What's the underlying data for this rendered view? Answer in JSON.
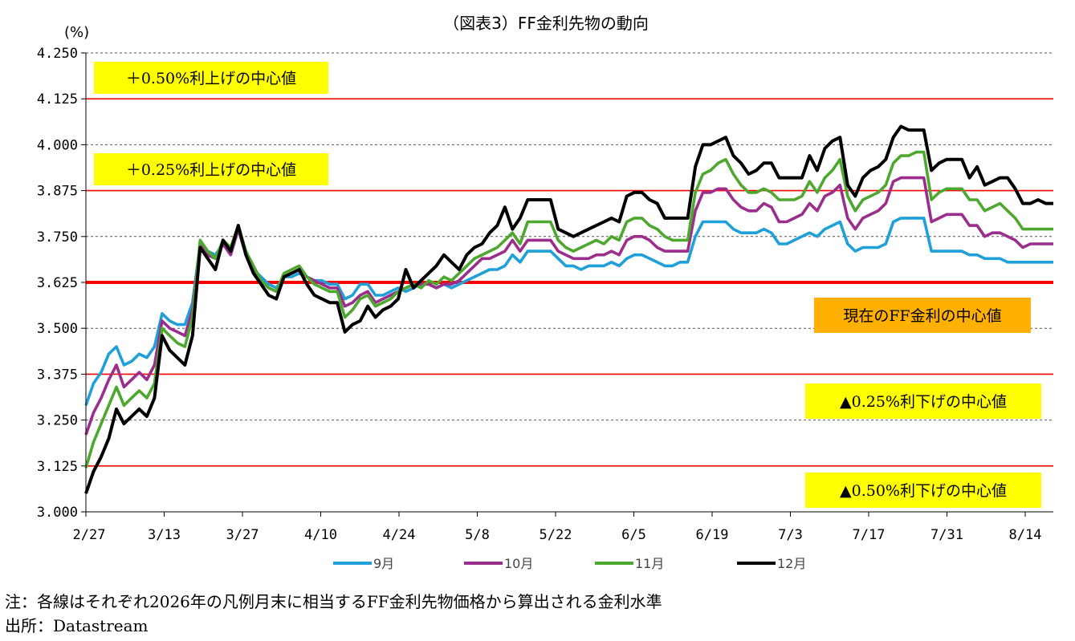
{
  "chart_data": {
    "type": "line",
    "title": "（図表3）FF金利先物の動向",
    "ylabel": "(%)",
    "ylim": [
      3.0,
      4.25
    ],
    "y_ticks": [
      "4.250",
      "4.125",
      "4.000",
      "3.875",
      "3.750",
      "3.625",
      "3.500",
      "3.375",
      "3.250",
      "3.125",
      "3.000"
    ],
    "x_ticks": [
      "2/27",
      "3/13",
      "3/27",
      "4/10",
      "4/24",
      "5/8",
      "5/22",
      "6/5",
      "6/19",
      "7/3",
      "7/17",
      "7/31",
      "8/14"
    ],
    "grid": "horizontal dashed",
    "legend_position": "bottom",
    "reference_lines": [
      {
        "value": 4.125,
        "color": "#ff0000",
        "bold": false
      },
      {
        "value": 3.875,
        "color": "#ff0000",
        "bold": false
      },
      {
        "value": 3.625,
        "color": "#ff0000",
        "bold": true
      },
      {
        "value": 3.375,
        "color": "#ff0000",
        "bold": false
      },
      {
        "value": 3.125,
        "color": "#ff0000",
        "bold": false
      }
    ],
    "annotations": [
      {
        "text": "＋0.50%利上げの中心値",
        "color": "#ffff00"
      },
      {
        "text": "＋0.25%利上げの中心値",
        "color": "#ffff00"
      },
      {
        "text": "現在のFF金利の中心値",
        "color": "#ffb000"
      },
      {
        "text": "▲0.25%利下げの中心値",
        "color": "#ffff00"
      },
      {
        "text": "▲0.50%利下げの中心値",
        "color": "#ffff00"
      }
    ],
    "series": [
      {
        "name": "9月",
        "color": "#1fa0d8",
        "values": [
          3.29,
          3.35,
          3.38,
          3.43,
          3.45,
          3.4,
          3.41,
          3.43,
          3.42,
          3.45,
          3.54,
          3.52,
          3.51,
          3.51,
          3.57,
          3.73,
          3.71,
          3.7,
          3.73,
          3.7,
          3.77,
          3.7,
          3.66,
          3.64,
          3.62,
          3.61,
          3.64,
          3.64,
          3.65,
          3.64,
          3.63,
          3.63,
          3.62,
          3.62,
          3.58,
          3.59,
          3.62,
          3.62,
          3.59,
          3.59,
          3.6,
          3.61,
          3.6,
          3.61,
          3.62,
          3.62,
          3.61,
          3.62,
          3.61,
          3.62,
          3.63,
          3.64,
          3.65,
          3.66,
          3.66,
          3.67,
          3.7,
          3.68,
          3.71,
          3.71,
          3.71,
          3.71,
          3.69,
          3.67,
          3.67,
          3.66,
          3.67,
          3.67,
          3.67,
          3.68,
          3.67,
          3.69,
          3.7,
          3.7,
          3.69,
          3.68,
          3.67,
          3.67,
          3.68,
          3.68,
          3.75,
          3.79,
          3.79,
          3.79,
          3.79,
          3.77,
          3.76,
          3.76,
          3.76,
          3.77,
          3.76,
          3.73,
          3.73,
          3.74,
          3.75,
          3.76,
          3.75,
          3.77,
          3.78,
          3.79,
          3.73,
          3.71,
          3.72,
          3.72,
          3.72,
          3.73,
          3.79,
          3.8,
          3.8,
          3.8,
          3.8,
          3.71,
          3.71,
          3.71,
          3.71,
          3.71,
          3.7,
          3.7,
          3.69,
          3.69,
          3.69,
          3.68,
          3.68,
          3.68,
          3.68,
          3.68,
          3.68,
          3.68
        ]
      },
      {
        "name": "10月",
        "color": "#9b2e8d",
        "values": [
          3.21,
          3.27,
          3.31,
          3.36,
          3.4,
          3.34,
          3.36,
          3.38,
          3.36,
          3.4,
          3.52,
          3.5,
          3.49,
          3.48,
          3.55,
          3.73,
          3.7,
          3.69,
          3.73,
          3.7,
          3.77,
          3.7,
          3.66,
          3.63,
          3.61,
          3.6,
          3.64,
          3.65,
          3.66,
          3.64,
          3.63,
          3.62,
          3.61,
          3.61,
          3.56,
          3.57,
          3.59,
          3.6,
          3.57,
          3.58,
          3.59,
          3.6,
          3.61,
          3.62,
          3.62,
          3.62,
          3.61,
          3.62,
          3.62,
          3.63,
          3.65,
          3.67,
          3.69,
          3.69,
          3.7,
          3.71,
          3.74,
          3.71,
          3.74,
          3.74,
          3.74,
          3.74,
          3.71,
          3.7,
          3.69,
          3.69,
          3.69,
          3.7,
          3.7,
          3.71,
          3.7,
          3.74,
          3.75,
          3.75,
          3.74,
          3.72,
          3.71,
          3.71,
          3.71,
          3.71,
          3.82,
          3.87,
          3.87,
          3.88,
          3.88,
          3.85,
          3.83,
          3.82,
          3.82,
          3.84,
          3.83,
          3.79,
          3.79,
          3.8,
          3.81,
          3.84,
          3.82,
          3.86,
          3.87,
          3.89,
          3.8,
          3.77,
          3.8,
          3.81,
          3.82,
          3.84,
          3.9,
          3.91,
          3.91,
          3.91,
          3.91,
          3.79,
          3.8,
          3.81,
          3.81,
          3.81,
          3.78,
          3.78,
          3.75,
          3.76,
          3.76,
          3.75,
          3.74,
          3.72,
          3.73,
          3.73,
          3.73,
          3.73
        ]
      },
      {
        "name": "11月",
        "color": "#4ea72e",
        "values": [
          3.12,
          3.19,
          3.24,
          3.29,
          3.34,
          3.29,
          3.31,
          3.33,
          3.31,
          3.35,
          3.5,
          3.48,
          3.46,
          3.45,
          3.53,
          3.74,
          3.71,
          3.69,
          3.74,
          3.72,
          3.78,
          3.71,
          3.67,
          3.63,
          3.61,
          3.6,
          3.65,
          3.66,
          3.67,
          3.64,
          3.62,
          3.61,
          3.6,
          3.6,
          3.53,
          3.55,
          3.58,
          3.59,
          3.56,
          3.57,
          3.58,
          3.6,
          3.61,
          3.62,
          3.61,
          3.63,
          3.62,
          3.64,
          3.63,
          3.65,
          3.67,
          3.69,
          3.7,
          3.71,
          3.72,
          3.74,
          3.76,
          3.73,
          3.79,
          3.79,
          3.79,
          3.79,
          3.74,
          3.72,
          3.71,
          3.72,
          3.73,
          3.74,
          3.73,
          3.75,
          3.74,
          3.79,
          3.8,
          3.8,
          3.78,
          3.77,
          3.75,
          3.74,
          3.74,
          3.74,
          3.87,
          3.92,
          3.93,
          3.95,
          3.96,
          3.92,
          3.89,
          3.87,
          3.87,
          3.88,
          3.87,
          3.85,
          3.85,
          3.85,
          3.86,
          3.9,
          3.87,
          3.91,
          3.93,
          3.96,
          3.86,
          3.82,
          3.85,
          3.86,
          3.87,
          3.89,
          3.95,
          3.97,
          3.97,
          3.98,
          3.98,
          3.85,
          3.87,
          3.88,
          3.88,
          3.88,
          3.85,
          3.85,
          3.82,
          3.83,
          3.84,
          3.82,
          3.8,
          3.77,
          3.77,
          3.77,
          3.77,
          3.77
        ]
      },
      {
        "name": "12月",
        "color": "#000000",
        "values": [
          3.05,
          3.11,
          3.15,
          3.2,
          3.28,
          3.24,
          3.26,
          3.28,
          3.26,
          3.31,
          3.48,
          3.44,
          3.42,
          3.4,
          3.48,
          3.72,
          3.69,
          3.66,
          3.74,
          3.71,
          3.78,
          3.7,
          3.65,
          3.62,
          3.59,
          3.58,
          3.64,
          3.65,
          3.66,
          3.62,
          3.59,
          3.58,
          3.57,
          3.57,
          3.49,
          3.51,
          3.52,
          3.56,
          3.53,
          3.55,
          3.56,
          3.58,
          3.66,
          3.61,
          3.63,
          3.65,
          3.67,
          3.7,
          3.68,
          3.66,
          3.7,
          3.72,
          3.73,
          3.76,
          3.78,
          3.83,
          3.77,
          3.8,
          3.85,
          3.85,
          3.85,
          3.85,
          3.77,
          3.76,
          3.75,
          3.76,
          3.77,
          3.78,
          3.79,
          3.8,
          3.79,
          3.86,
          3.87,
          3.87,
          3.85,
          3.84,
          3.8,
          3.8,
          3.8,
          3.8,
          3.94,
          4.0,
          4.0,
          4.01,
          4.02,
          3.97,
          3.95,
          3.92,
          3.93,
          3.95,
          3.95,
          3.91,
          3.91,
          3.91,
          3.91,
          3.97,
          3.93,
          3.99,
          4.01,
          4.02,
          3.89,
          3.86,
          3.91,
          3.93,
          3.94,
          3.96,
          4.02,
          4.05,
          4.04,
          4.04,
          4.04,
          3.93,
          3.95,
          3.96,
          3.96,
          3.96,
          3.91,
          3.94,
          3.89,
          3.9,
          3.91,
          3.91,
          3.88,
          3.84,
          3.84,
          3.85,
          3.84,
          3.84
        ]
      }
    ]
  },
  "notes": {
    "line1": "注：各線はそれぞれ2026年の凡例月末に相当するFF金利先物価格から算出される金利水準",
    "line2": "出所：Datastream"
  }
}
